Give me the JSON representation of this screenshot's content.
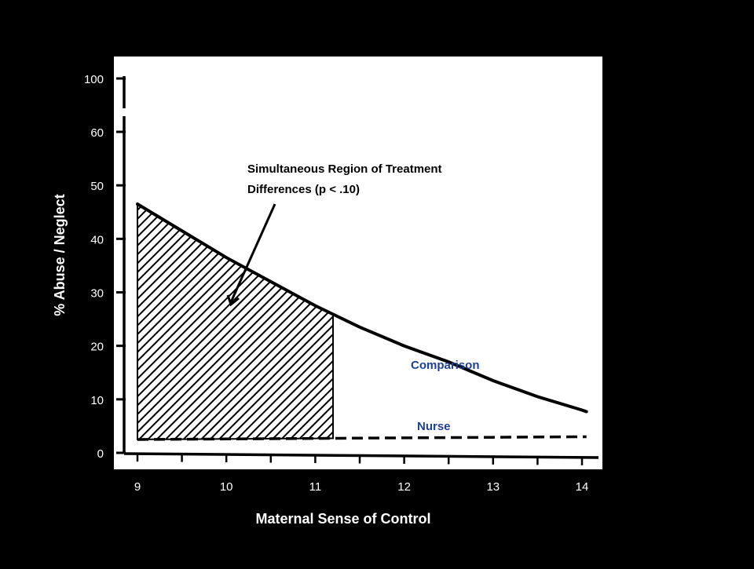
{
  "chart_data": {
    "type": "line",
    "xlabel": "Maternal Sense of Control",
    "ylabel": "% Abuse / Neglect",
    "x_ticks": [
      "9",
      "10",
      "11",
      "12",
      "13",
      "14"
    ],
    "y_ticks": [
      "0",
      "10",
      "20",
      "30",
      "40",
      "50",
      "60",
      "100"
    ],
    "xlim": [
      9,
      14
    ],
    "ylim": [
      0,
      100
    ],
    "y_axis_break": "between 60 and 100",
    "grid": false,
    "series": [
      {
        "name": "Comparison",
        "color": "#1f3f8f",
        "points": [
          [
            9,
            46.5
          ],
          [
            9.5,
            41.5
          ],
          [
            10,
            36.5
          ],
          [
            10.5,
            32
          ],
          [
            11,
            27.5
          ],
          [
            11.5,
            23.5
          ],
          [
            12,
            20
          ],
          [
            12.5,
            17
          ],
          [
            13,
            13.5
          ],
          [
            13.5,
            10.5
          ],
          [
            14,
            8
          ],
          [
            14.05,
            7.7
          ]
        ]
      },
      {
        "name": "Nurse",
        "color": "#1f3f8f",
        "style": "dashed",
        "points": [
          [
            9,
            2.5
          ],
          [
            10,
            2.6
          ],
          [
            11,
            2.7
          ],
          [
            12,
            2.8
          ],
          [
            13,
            2.9
          ],
          [
            14,
            3.0
          ],
          [
            14.05,
            3.0
          ]
        ]
      }
    ],
    "shaded_region": {
      "x_from": 9,
      "x_to": 11.2,
      "pattern": "diagonal-hatch"
    },
    "annotation": {
      "lines": [
        "Simultaneous Region of Treatment",
        "Differences (p < .10)"
      ]
    },
    "colors": {
      "background": "#000000",
      "plot_area": "#ffffff",
      "ink": "#000000",
      "tick_text": "#ffffff",
      "series_label": "#1f3f8f"
    }
  }
}
